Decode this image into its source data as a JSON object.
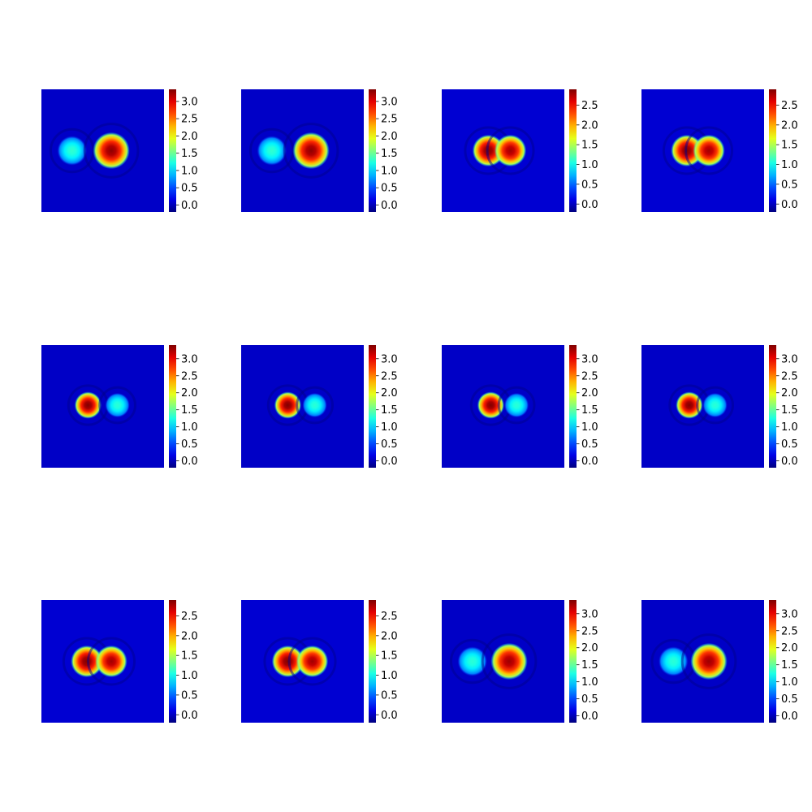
{
  "chart_data": {
    "type": "heatmap",
    "colormap": "jet",
    "layout": "3x4 grid of heatmaps, each with a vertical colorbar on its right",
    "axes_visible": false,
    "colors": {
      "background": "#0000c8",
      "low": "#00007f",
      "mid": "#7fff7f",
      "high": "#7f0000"
    },
    "panels": [
      {
        "row": 1,
        "col": 1,
        "vmin": -0.2,
        "vmax": 3.35,
        "ticks": [
          "0.0",
          "0.5",
          "1.0",
          "1.5",
          "2.0",
          "2.5",
          "3.0"
        ],
        "blobs": [
          {
            "cx": 0.25,
            "cy": 0.5,
            "r": 0.12,
            "peak": 1.3
          },
          {
            "cx": 0.57,
            "cy": 0.5,
            "r": 0.15,
            "peak": 3.3
          }
        ]
      },
      {
        "row": 1,
        "col": 2,
        "vmin": -0.2,
        "vmax": 3.35,
        "ticks": [
          "0.0",
          "0.5",
          "1.0",
          "1.5",
          "2.0",
          "2.5",
          "3.0"
        ],
        "blobs": [
          {
            "cx": 0.25,
            "cy": 0.5,
            "r": 0.12,
            "peak": 1.3
          },
          {
            "cx": 0.57,
            "cy": 0.5,
            "r": 0.15,
            "peak": 3.3
          }
        ]
      },
      {
        "row": 1,
        "col": 3,
        "vmin": -0.2,
        "vmax": 2.9,
        "ticks": [
          "0.0",
          "0.5",
          "1.0",
          "1.5",
          "2.0",
          "2.5"
        ],
        "blobs": [
          {
            "cx": 0.38,
            "cy": 0.5,
            "r": 0.13,
            "peak": 2.9
          },
          {
            "cx": 0.56,
            "cy": 0.5,
            "r": 0.13,
            "peak": 2.8
          }
        ]
      },
      {
        "row": 1,
        "col": 4,
        "vmin": -0.2,
        "vmax": 2.9,
        "ticks": [
          "0.0",
          "0.5",
          "1.0",
          "1.5",
          "2.0",
          "2.5"
        ],
        "blobs": [
          {
            "cx": 0.37,
            "cy": 0.5,
            "r": 0.13,
            "peak": 2.9
          },
          {
            "cx": 0.55,
            "cy": 0.5,
            "r": 0.13,
            "peak": 2.8
          }
        ]
      },
      {
        "row": 2,
        "col": 1,
        "vmin": -0.2,
        "vmax": 3.4,
        "ticks": [
          "0.0",
          "0.5",
          "1.0",
          "1.5",
          "2.0",
          "2.5",
          "3.0"
        ],
        "blobs": [
          {
            "cx": 0.38,
            "cy": 0.49,
            "r": 0.11,
            "peak": 3.4
          },
          {
            "cx": 0.62,
            "cy": 0.49,
            "r": 0.1,
            "peak": 1.3
          }
        ]
      },
      {
        "row": 2,
        "col": 2,
        "vmin": -0.2,
        "vmax": 3.4,
        "ticks": [
          "0.0",
          "0.5",
          "1.0",
          "1.5",
          "2.0",
          "2.5",
          "3.0"
        ],
        "blobs": [
          {
            "cx": 0.38,
            "cy": 0.49,
            "r": 0.11,
            "peak": 3.4
          },
          {
            "cx": 0.6,
            "cy": 0.49,
            "r": 0.1,
            "peak": 1.3
          }
        ]
      },
      {
        "row": 2,
        "col": 3,
        "vmin": -0.2,
        "vmax": 3.4,
        "ticks": [
          "0.0",
          "0.5",
          "1.0",
          "1.5",
          "2.0",
          "2.5",
          "3.0"
        ],
        "blobs": [
          {
            "cx": 0.4,
            "cy": 0.49,
            "r": 0.11,
            "peak": 3.4
          },
          {
            "cx": 0.61,
            "cy": 0.49,
            "r": 0.1,
            "peak": 1.3
          }
        ]
      },
      {
        "row": 2,
        "col": 4,
        "vmin": -0.2,
        "vmax": 3.4,
        "ticks": [
          "0.0",
          "0.5",
          "1.0",
          "1.5",
          "2.0",
          "2.5",
          "3.0"
        ],
        "blobs": [
          {
            "cx": 0.39,
            "cy": 0.49,
            "r": 0.11,
            "peak": 3.4
          },
          {
            "cx": 0.6,
            "cy": 0.49,
            "r": 0.1,
            "peak": 1.3
          }
        ]
      },
      {
        "row": 3,
        "col": 1,
        "vmin": -0.2,
        "vmax": 2.9,
        "ticks": [
          "0.0",
          "0.5",
          "1.0",
          "1.5",
          "2.0",
          "2.5"
        ],
        "blobs": [
          {
            "cx": 0.37,
            "cy": 0.5,
            "r": 0.13,
            "peak": 2.9
          },
          {
            "cx": 0.57,
            "cy": 0.5,
            "r": 0.13,
            "peak": 2.8
          }
        ]
      },
      {
        "row": 3,
        "col": 2,
        "vmin": -0.2,
        "vmax": 2.9,
        "ticks": [
          "0.0",
          "0.5",
          "1.0",
          "1.5",
          "2.0",
          "2.5"
        ],
        "blobs": [
          {
            "cx": 0.38,
            "cy": 0.5,
            "r": 0.13,
            "peak": 2.9
          },
          {
            "cx": 0.58,
            "cy": 0.5,
            "r": 0.13,
            "peak": 2.8
          }
        ]
      },
      {
        "row": 3,
        "col": 3,
        "vmin": -0.2,
        "vmax": 3.4,
        "ticks": [
          "0.0",
          "0.5",
          "1.0",
          "1.5",
          "2.0",
          "2.5",
          "3.0"
        ],
        "blobs": [
          {
            "cx": 0.25,
            "cy": 0.5,
            "r": 0.12,
            "peak": 1.3
          },
          {
            "cx": 0.55,
            "cy": 0.5,
            "r": 0.15,
            "peak": 3.3
          }
        ]
      },
      {
        "row": 3,
        "col": 4,
        "vmin": -0.2,
        "vmax": 3.4,
        "ticks": [
          "0.0",
          "0.5",
          "1.0",
          "1.5",
          "2.0",
          "2.5",
          "3.0"
        ],
        "blobs": [
          {
            "cx": 0.26,
            "cy": 0.5,
            "r": 0.12,
            "peak": 1.3
          },
          {
            "cx": 0.55,
            "cy": 0.5,
            "r": 0.15,
            "peak": 3.3
          }
        ]
      }
    ]
  }
}
